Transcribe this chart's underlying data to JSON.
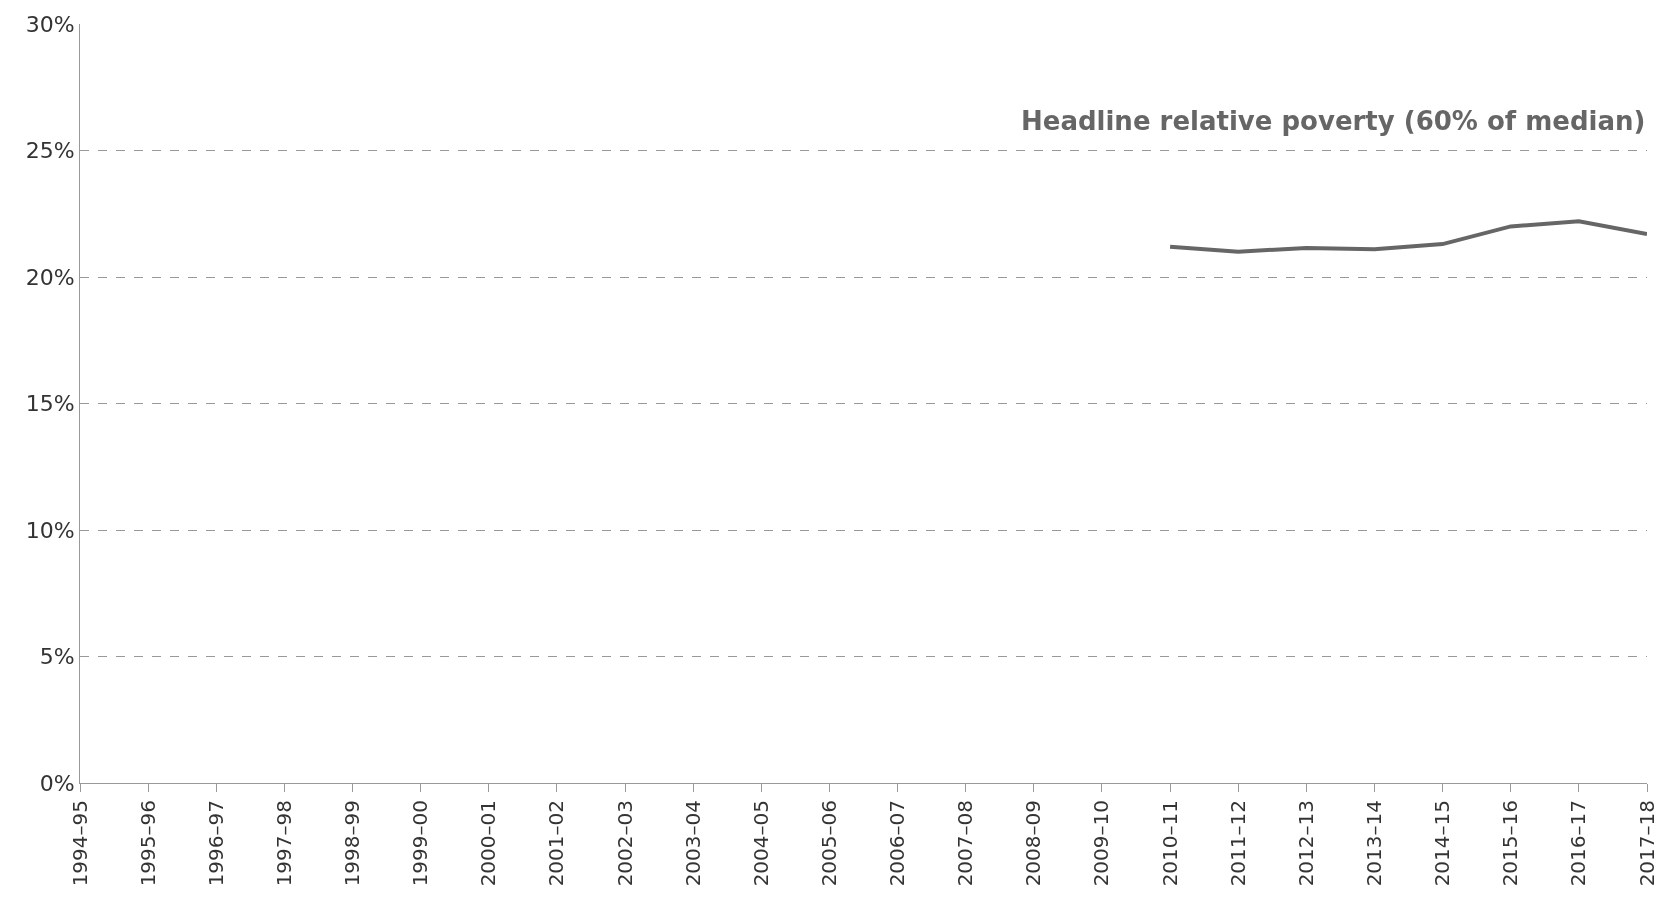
{
  "chart_data": {
    "type": "line",
    "categories": [
      "1994–95",
      "1995–96",
      "1996–97",
      "1997–98",
      "1998–99",
      "1999–00",
      "2000–01",
      "2001–02",
      "2002–03",
      "2003–04",
      "2004–05",
      "2005–06",
      "2006–07",
      "2007–08",
      "2008–09",
      "2009–10",
      "2010–11",
      "2011–12",
      "2012–13",
      "2013–14",
      "2014–15",
      "2015–16",
      "2016–17",
      "2017–18"
    ],
    "series": [
      {
        "color": "#666666",
        "values": [
          null,
          null,
          null,
          null,
          null,
          null,
          null,
          null,
          null,
          null,
          null,
          null,
          null,
          null,
          null,
          null,
          21.2,
          21.0,
          21.15,
          21.1,
          21.3,
          22.0,
          22.2,
          21.7
        ]
      }
    ],
    "annotations": [
      "Headline relative poverty (60% of median)"
    ],
    "ylim": [
      0,
      30
    ],
    "yticks": [
      {
        "value": 0,
        "label": "0%"
      },
      {
        "value": 5,
        "label": "5%"
      },
      {
        "value": 10,
        "label": "10%"
      },
      {
        "value": 15,
        "label": "15%"
      },
      {
        "value": 20,
        "label": "20%"
      },
      {
        "value": 25,
        "label": "25%"
      },
      {
        "value": 30,
        "label": "30%"
      }
    ],
    "grid": "y",
    "marker": "none",
    "line_style": "solid"
  }
}
